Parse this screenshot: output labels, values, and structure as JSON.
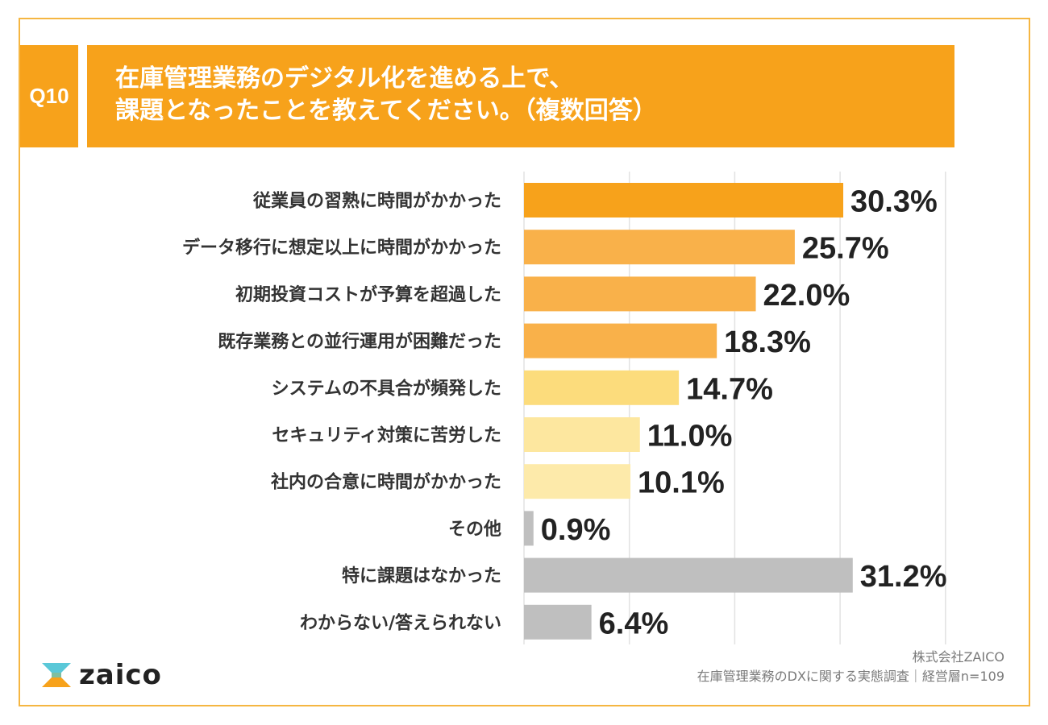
{
  "question": {
    "badge": "Q10",
    "title_line1": "在庫管理業務のデジタル化を進める上で、",
    "title_line2": "課題となったことを教えてください。（複数回答）"
  },
  "chart_data": {
    "type": "bar",
    "orientation": "horizontal",
    "title": "在庫管理業務のデジタル化を進める上で、課題となったことを教えてください。（複数回答）",
    "categories": [
      "従業員の習熟に時間がかかった",
      "データ移行に想定以上に時間がかかった",
      "初期投資コストが予算を超過した",
      "既存業務との並行運用が困難だった",
      "システムの不具合が頻発した",
      "セキュリティ対策に苦労した",
      "社内の合意に時間がかかった",
      "その他",
      "特に課題はなかった",
      "わからない/答えられない"
    ],
    "values": [
      30.3,
      25.7,
      22.0,
      18.3,
      14.7,
      11.0,
      10.1,
      0.9,
      31.2,
      6.4
    ],
    "labels": [
      "30.3%",
      "25.7%",
      "22.0%",
      "18.3%",
      "14.7%",
      "11.0%",
      "10.1%",
      "0.9%",
      "31.2%",
      "6.4%"
    ],
    "colors": [
      "#f7a21b",
      "#f9b14a",
      "#f9b14a",
      "#f9b14a",
      "#fcdc7c",
      "#fde79f",
      "#fdeaaa",
      "#bfbfbf",
      "#bfbfbf",
      "#bfbfbf"
    ],
    "xlim": [
      0,
      40
    ],
    "grid": true,
    "unit": "%"
  },
  "logo": {
    "text": "zaico",
    "icon": "zaico-logo-icon"
  },
  "source": {
    "line1": "株式会社ZAICO",
    "line2": "在庫管理業務のDXに関する実態調査｜経営層n=109"
  }
}
